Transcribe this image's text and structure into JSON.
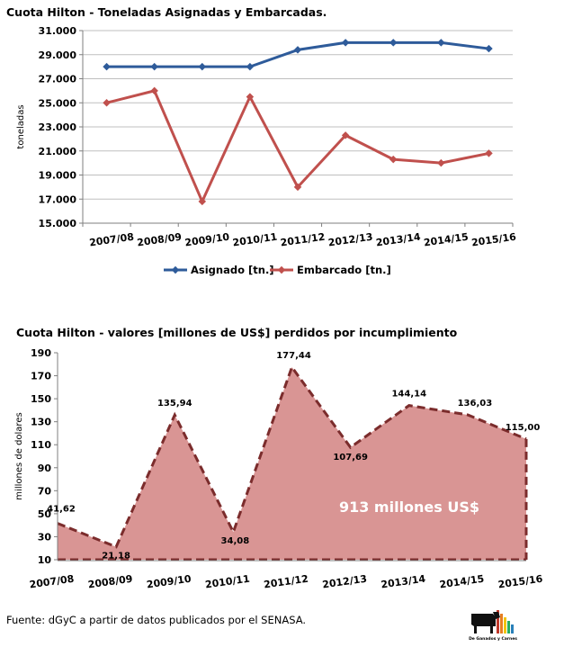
{
  "colors": {
    "asignado": "#2e5b9a",
    "embarcado": "#c0504d",
    "area_fill": "#d99594",
    "area_stroke": "#7b2c2c",
    "grid": "#bfbfbf"
  },
  "chart_data": [
    {
      "type": "line",
      "title": "Cuota Hilton - Toneladas Asignadas y Embarcadas.",
      "ylabel": "toneladas",
      "xlabel": "",
      "categories": [
        "2007/08",
        "2008/09",
        "2009/10",
        "2010/11",
        "2011/12",
        "2012/13",
        "2013/14",
        "2014/15",
        "2015/16"
      ],
      "y_ticks": [
        "15.000",
        "17.000",
        "19.000",
        "21.000",
        "23.000",
        "25.000",
        "27.000",
        "29.000",
        "31.000"
      ],
      "ylim": [
        15000,
        31000
      ],
      "grid": true,
      "legend_position": "bottom",
      "series": [
        {
          "name": "Asignado [tn.]",
          "values": [
            28000,
            28000,
            28000,
            28000,
            29400,
            30000,
            30000,
            30000,
            29500
          ]
        },
        {
          "name": "Embarcado [tn.]",
          "values": [
            25000,
            26000,
            16800,
            25500,
            18000,
            22300,
            20300,
            20000,
            20800
          ]
        }
      ]
    },
    {
      "type": "area",
      "title": "Cuota Hilton - valores [millones de US$] perdidos por incumplimiento",
      "ylabel": "millones de dolares",
      "xlabel": "",
      "categories": [
        "2007/08",
        "2008/09",
        "2009/10",
        "2010/11",
        "2011/12",
        "2012/13",
        "2013/14",
        "2014/15",
        "2015/16"
      ],
      "y_ticks": [
        "10",
        "30",
        "50",
        "70",
        "90",
        "110",
        "130",
        "150",
        "170",
        "190"
      ],
      "ylim": [
        10,
        190
      ],
      "grid": false,
      "values": [
        41.62,
        21.18,
        135.94,
        34.08,
        177.44,
        107.69,
        144.14,
        136.03,
        115.0
      ],
      "data_labels": [
        "41,62",
        "21,18",
        "135,94",
        "34,08",
        "177,44",
        "107,69",
        "144,14",
        "136,03",
        "115,00"
      ],
      "annotation": "913 millones US$"
    }
  ],
  "footer": {
    "source": "Fuente: dGyC a partir de datos publicados por el SENASA."
  },
  "logo": {
    "text": "De Ganados y Carnes"
  }
}
